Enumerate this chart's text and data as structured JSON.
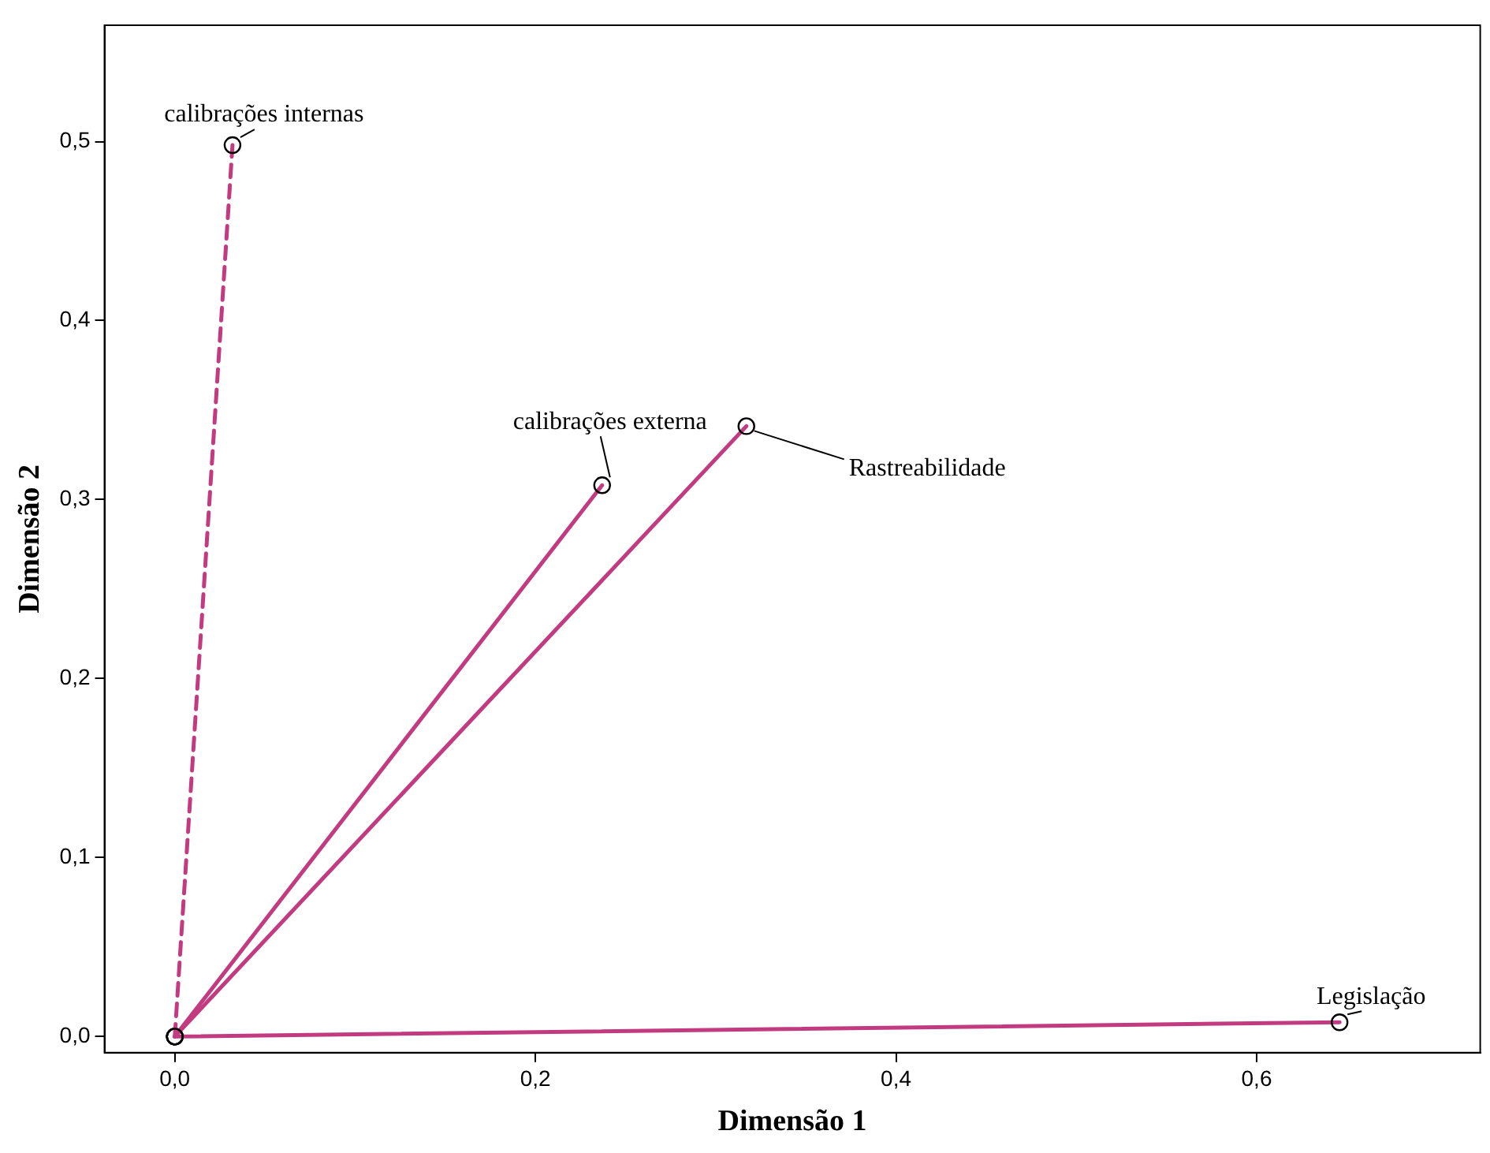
{
  "chart_data": {
    "type": "line",
    "xlabel": "Dimensão 1",
    "ylabel": "Dimensão 2",
    "xlim": [
      -0.039,
      0.724
    ],
    "ylim": [
      -0.009,
      0.565
    ],
    "xticks": [
      {
        "value": 0,
        "label": "0,0"
      },
      {
        "value": 0.2,
        "label": "0,2"
      },
      {
        "value": 0.4,
        "label": "0,4"
      },
      {
        "value": 0.6,
        "label": "0,6"
      }
    ],
    "yticks": [
      {
        "value": 0,
        "label": "0,0"
      },
      {
        "value": 0.1,
        "label": "0,1"
      },
      {
        "value": 0.2,
        "label": "0,2"
      },
      {
        "value": 0.3,
        "label": "0,3"
      },
      {
        "value": 0.4,
        "label": "0,4"
      },
      {
        "value": 0.5,
        "label": "0,5"
      }
    ],
    "grid": false,
    "legend": false,
    "marker": "circle",
    "series": [
      {
        "name": "calibrações internas",
        "color": "#c23b80",
        "x": [
          0,
          0.032
        ],
        "values": [
          0,
          0.498
        ],
        "line_style": "dashed"
      },
      {
        "name": "calibrações externa",
        "color": "#c23b80",
        "x": [
          0,
          0.237
        ],
        "values": [
          0,
          0.308
        ],
        "line_style": "solid"
      },
      {
        "name": "Rastreabilidade",
        "color": "#c23b80",
        "x": [
          0,
          0.317
        ],
        "values": [
          0,
          0.341
        ],
        "line_style": "solid"
      },
      {
        "name": "Legislação",
        "color": "#c23b80",
        "x": [
          0,
          0.646
        ],
        "values": [
          0,
          0.008
        ],
        "line_style": "solid"
      }
    ]
  }
}
